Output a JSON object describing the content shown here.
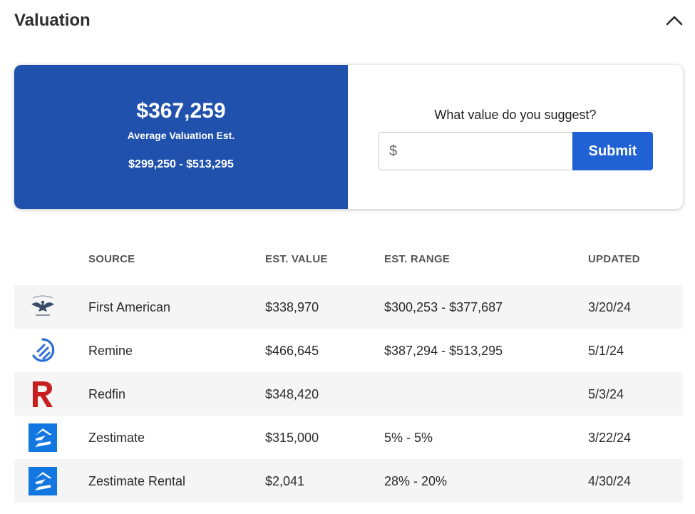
{
  "header": {
    "title": "Valuation"
  },
  "summary": {
    "average_value": "$367,259",
    "average_label": "Average Valuation Est.",
    "range": "$299,250 - $513,295"
  },
  "suggest": {
    "question": "What value do you suggest?",
    "currency_symbol": "$",
    "input_value": "",
    "submit_label": "Submit"
  },
  "table": {
    "columns": {
      "source": "SOURCE",
      "value": "EST. VALUE",
      "range": "EST. RANGE",
      "updated": "UPDATED"
    },
    "rows": [
      {
        "logo": "first-american-eagle-logo",
        "source": "First American",
        "value": "$338,970",
        "range": "$300,253 - $377,687",
        "updated": "3/20/24"
      },
      {
        "logo": "remine-logo",
        "source": "Remine",
        "value": "$466,645",
        "range": "$387,294 - $513,295",
        "updated": "5/1/24"
      },
      {
        "logo": "redfin-logo",
        "source": "Redfin",
        "value": "$348,420",
        "range": "",
        "updated": "5/3/24"
      },
      {
        "logo": "zillow-logo",
        "source": "Zestimate",
        "value": "$315,000",
        "range": "5% - 5%",
        "updated": "3/22/24"
      },
      {
        "logo": "zillow-logo",
        "source": "Zestimate Rental",
        "value": "$2,041",
        "range": "28% - 20%",
        "updated": "4/30/24"
      }
    ]
  },
  "colors": {
    "summary_bg": "#2051ad",
    "submit_bg": "#2062d3",
    "redfin_red": "#c82021",
    "zillow_blue": "#1277e1",
    "remine_blue": "#2b6fd6",
    "row_shade": "#f5f5f5"
  }
}
